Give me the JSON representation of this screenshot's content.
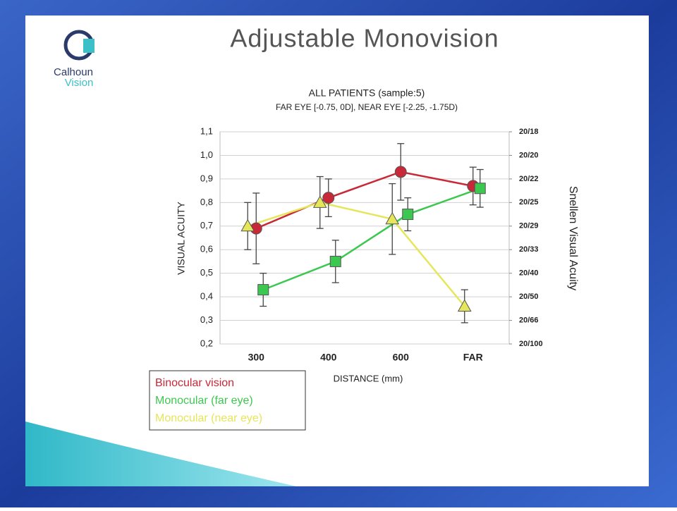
{
  "slide": {
    "title": "Adjustable Monovision",
    "logo": [
      "Calhoun",
      "Vision"
    ]
  },
  "chart_data": {
    "type": "line",
    "title": "ALL PATIENTS (sample:5)",
    "subtitle": "FAR EYE [-0.75, 0D], NEAR EYE [-2.25, -1.75D)",
    "x_label": "DISTANCE (mm)",
    "y_label": "VISUAL ACUITY",
    "y2_label": "Snellen Visual Acuity",
    "categories": [
      "300",
      "400",
      "600",
      "FAR"
    ],
    "series": [
      {
        "name": "Binocular vision",
        "color": "#c82838",
        "marker": "circle",
        "values": [
          0.69,
          0.82,
          0.93,
          0.87
        ],
        "errors": [
          0.15,
          0.08,
          0.12,
          0.08
        ]
      },
      {
        "name": "Monocular (far eye)",
        "color": "#3cc850",
        "marker": "square",
        "values": [
          0.43,
          0.55,
          0.75,
          0.86
        ],
        "errors": [
          0.07,
          0.09,
          0.07,
          0.08
        ]
      },
      {
        "name": "Monocular (near eye)",
        "color": "#e6e65a",
        "marker": "triangle",
        "values": [
          0.7,
          0.8,
          0.73,
          0.36
        ],
        "errors": [
          0.1,
          0.11,
          0.15,
          0.07
        ]
      }
    ],
    "ylim": [
      0.2,
      1.1
    ],
    "yticks": [
      {
        "value": 0.2,
        "label": "0,2"
      },
      {
        "value": 0.3,
        "label": "0,3"
      },
      {
        "value": 0.4,
        "label": "0,4"
      },
      {
        "value": 0.5,
        "label": "0,5"
      },
      {
        "value": 0.6,
        "label": "0,6"
      },
      {
        "value": 0.7,
        "label": "0,7"
      },
      {
        "value": 0.8,
        "label": "0,8"
      },
      {
        "value": 0.9,
        "label": "0,9"
      },
      {
        "value": 1.0,
        "label": "1,0"
      },
      {
        "value": 1.1,
        "label": "1,1"
      }
    ],
    "y2lim": [
      0.2,
      1.1
    ],
    "y2ticks": [
      {
        "value": 0.2,
        "label": "20/100"
      },
      {
        "value": 0.3,
        "label": "20/66"
      },
      {
        "value": 0.4,
        "label": "20/50"
      },
      {
        "value": 0.5,
        "label": "20/40"
      },
      {
        "value": 0.6,
        "label": "20/33"
      },
      {
        "value": 0.7,
        "label": "20/29"
      },
      {
        "value": 0.8,
        "label": "20/25"
      },
      {
        "value": 0.9,
        "label": "20/22"
      },
      {
        "value": 1.0,
        "label": "20/20"
      },
      {
        "value": 1.1,
        "label": "20/18"
      }
    ],
    "grid": true,
    "legend": "bottom-left"
  }
}
